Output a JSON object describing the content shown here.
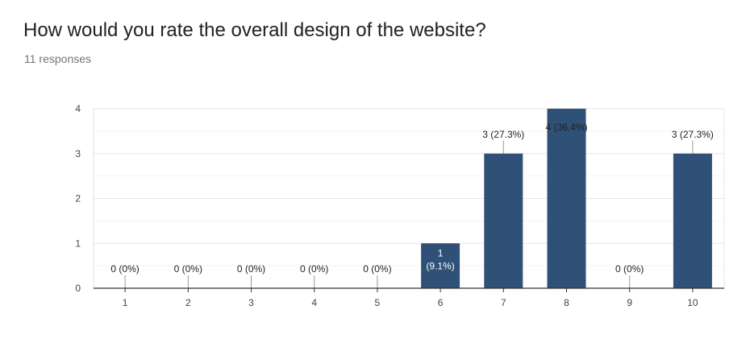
{
  "page": {
    "question": "How would you rate the overall design of the website?",
    "responses": "11 responses"
  },
  "chart_data": {
    "type": "bar",
    "categories": [
      "1",
      "2",
      "3",
      "4",
      "5",
      "6",
      "7",
      "8",
      "9",
      "10"
    ],
    "values": [
      0,
      0,
      0,
      0,
      0,
      1,
      3,
      4,
      0,
      3
    ],
    "data_labels": [
      "0 (0%)",
      "0 (0%)",
      "0 (0%)",
      "0 (0%)",
      "0 (0%)",
      "1 (9.1%)",
      "3 (27.3%)",
      "4 (36.4%)",
      "0 (0%)",
      "3 (27.3%)"
    ],
    "yticks": [
      0,
      1,
      2,
      3,
      4
    ],
    "ylim": [
      0,
      4
    ],
    "grid": true,
    "bar_color": "#2f5077",
    "axis_color": "#333333",
    "grid_color": "#e6e6e6",
    "minor_grid_color": "#f3f3f3"
  }
}
